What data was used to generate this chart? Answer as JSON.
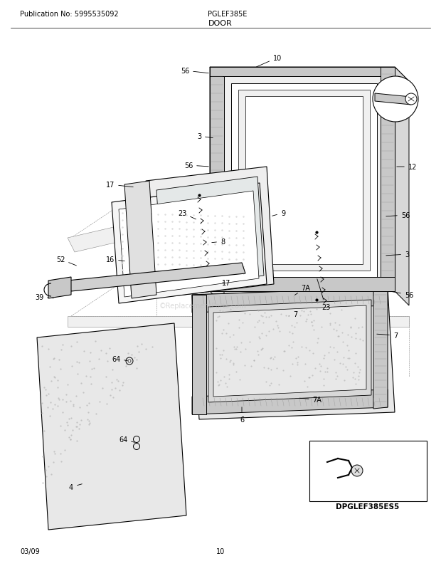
{
  "title": "DOOR",
  "pub_no": "Publication No: 5995535092",
  "model": "PGLEF385E",
  "footer_left": "03/09",
  "footer_center": "10",
  "diagram_label": "DPGLEF385ES5",
  "bg_color": "#ffffff",
  "gray_light": "#e8e8e8",
  "gray_mid": "#c8c8c8",
  "gray_dark": "#a0a0a0",
  "gray_fill": "#d4d4d4",
  "speckle_color": "#b0b0b0"
}
